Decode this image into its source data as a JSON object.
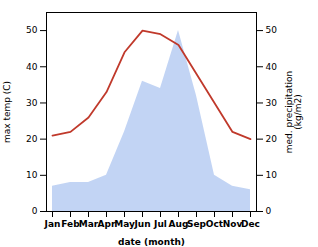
{
  "chart_data": {
    "type": "line",
    "categories": [
      "Jan",
      "Feb",
      "Mar",
      "Apr",
      "May",
      "Jun",
      "Jul",
      "Aug",
      "Sep",
      "Oct",
      "Nov",
      "Dec"
    ],
    "series": [
      {
        "type": "area",
        "color": "#aec6f0",
        "axis": "y2",
        "values": [
          7,
          8,
          8,
          10,
          22,
          36,
          34,
          50,
          32,
          10,
          7,
          6
        ]
      },
      {
        "type": "line",
        "color": "#c0392b",
        "values": [
          21,
          22,
          26,
          33,
          44,
          50,
          49,
          46,
          38,
          30,
          22,
          20
        ]
      }
    ],
    "xlabel": "date (month)",
    "ylabel": "max temp (C)",
    "y2label": "med. precipitation\n(kg/m2)",
    "ylim": [
      0,
      55
    ],
    "yticks": [
      0,
      10,
      20,
      30,
      40,
      50
    ],
    "y2lim": [
      0,
      55
    ],
    "y2ticks": [
      0,
      10,
      20,
      30,
      40,
      50
    ],
    "grid": false
  }
}
